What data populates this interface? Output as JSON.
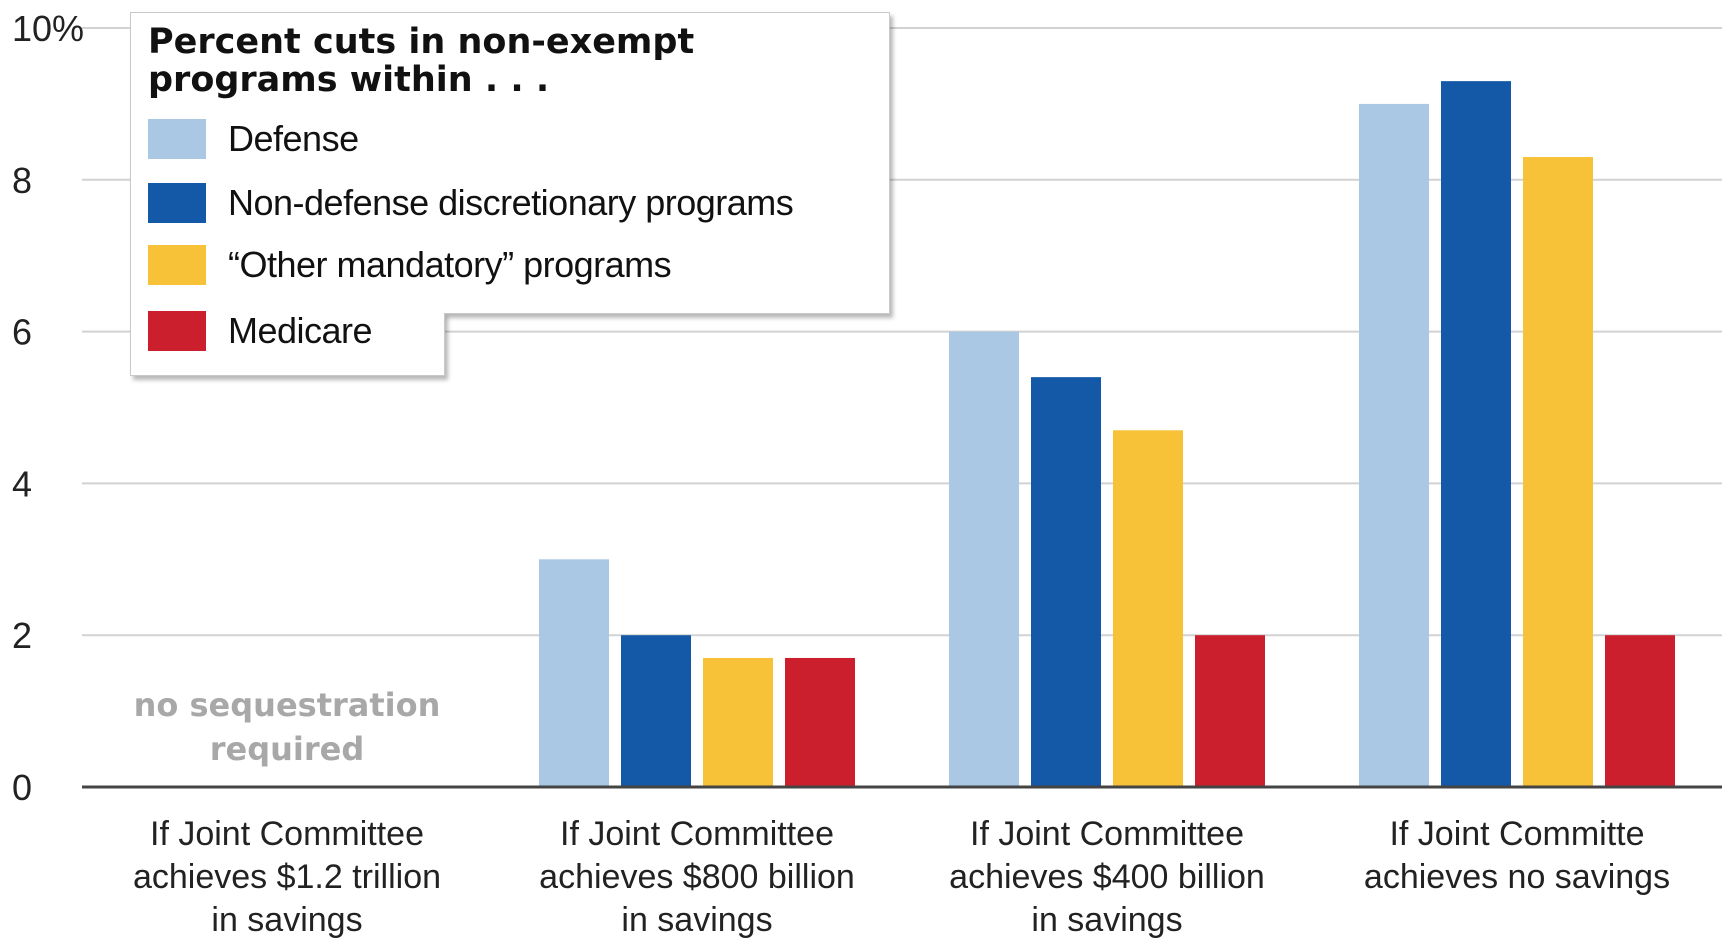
{
  "chart_data": {
    "type": "bar",
    "ylim": [
      0,
      10
    ],
    "yticks": [
      0,
      2,
      4,
      6,
      8,
      10
    ],
    "ytick_labels": [
      "0",
      "2",
      "4",
      "6",
      "8",
      "10%"
    ],
    "grid": true,
    "categories": [
      [
        "If Joint Committee",
        "achieves $1.2 trillion",
        "in savings"
      ],
      [
        "If Joint Committee",
        "achieves $800 billion",
        "in savings"
      ],
      [
        "If Joint Committee",
        "achieves $400 billion",
        "in savings"
      ],
      [
        "If Joint Committe",
        "achieves no savings"
      ]
    ],
    "series": [
      {
        "name": "Defense",
        "color": "#aac8e4",
        "values": [
          0,
          3.0,
          6.0,
          9.0
        ]
      },
      {
        "name": "Non-defense discretionary programs",
        "color": "#1459a8",
        "values": [
          0,
          2.0,
          5.4,
          9.3
        ]
      },
      {
        "name": "“Other mandatory” programs",
        "color": "#f8c238",
        "values": [
          0,
          1.7,
          4.7,
          8.3
        ]
      },
      {
        "name": "Medicare",
        "color": "#cc1f2d",
        "values": [
          0,
          1.7,
          2.0,
          2.0
        ]
      }
    ],
    "annotations": [
      {
        "category_index": 0,
        "lines": [
          "no sequestration",
          "required"
        ]
      }
    ],
    "legend": {
      "title": [
        "Percent cuts in non-exempt",
        "programs within . . ."
      ],
      "position": "top-left"
    }
  }
}
